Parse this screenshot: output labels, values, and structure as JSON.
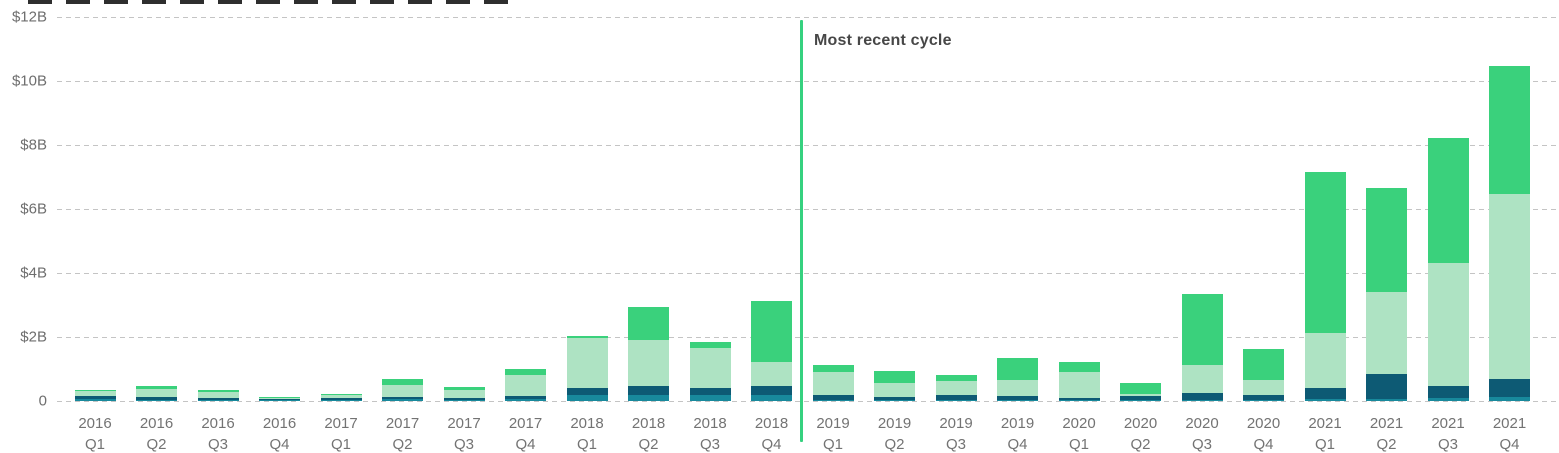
{
  "annotation": {
    "label": "Most recent cycle"
  },
  "y_axis": {
    "tick_labels": [
      "$12B",
      "$10B",
      "$8B",
      "$6B",
      "$4B",
      "$2B",
      "0"
    ]
  },
  "colors": {
    "divider": "#35d17f",
    "grid": "#c4c4c4",
    "axis_text": "#6e6e6e",
    "annotation_text": "#474747",
    "background": "#ffffff",
    "teal": "#18899c",
    "navy": "#0d5a74",
    "light_green": "#aee3c3",
    "green": "#3ad17c"
  },
  "chart_data": {
    "type": "bar",
    "stacked": true,
    "unit": "USD billions",
    "ylim": [
      0,
      12
    ],
    "ytick_labels": [
      "$12B",
      "$10B",
      "$8B",
      "$6B",
      "$4B",
      "$2B",
      "0"
    ],
    "grid": "dashed horizontal",
    "annotation": "Most recent cycle",
    "divider_after_index": 11,
    "x": {
      "years": [
        "2016",
        "2016",
        "2016",
        "2016",
        "2017",
        "2017",
        "2017",
        "2017",
        "2018",
        "2018",
        "2018",
        "2018",
        "2019",
        "2019",
        "2019",
        "2019",
        "2020",
        "2020",
        "2020",
        "2020",
        "2021",
        "2021",
        "2021",
        "2021"
      ],
      "quarters": [
        "Q1",
        "Q2",
        "Q3",
        "Q4",
        "Q1",
        "Q2",
        "Q3",
        "Q4",
        "Q1",
        "Q2",
        "Q3",
        "Q4",
        "Q1",
        "Q2",
        "Q3",
        "Q4",
        "Q1",
        "Q2",
        "Q3",
        "Q4",
        "Q1",
        "Q2",
        "Q3",
        "Q4"
      ]
    },
    "series": [
      {
        "name": "teal",
        "color": "#18899c",
        "values": [
          0.05,
          0.04,
          0.04,
          0.02,
          0.03,
          0.05,
          0.04,
          0.06,
          0.19,
          0.19,
          0.19,
          0.19,
          0.03,
          0.02,
          0.03,
          0.03,
          0.02,
          0.02,
          0.03,
          0.03,
          0.07,
          0.07,
          0.09,
          0.13
        ]
      },
      {
        "name": "navy",
        "color": "#0d5a74",
        "values": [
          0.1,
          0.08,
          0.07,
          0.04,
          0.05,
          0.08,
          0.07,
          0.1,
          0.22,
          0.28,
          0.22,
          0.28,
          0.16,
          0.12,
          0.15,
          0.12,
          0.08,
          0.15,
          0.22,
          0.16,
          0.34,
          0.78,
          0.38,
          0.56
        ]
      },
      {
        "name": "light-green",
        "color": "#aee3c3",
        "values": [
          0.16,
          0.27,
          0.17,
          0.04,
          0.1,
          0.36,
          0.23,
          0.64,
          1.56,
          1.44,
          1.25,
          0.75,
          0.72,
          0.42,
          0.44,
          0.5,
          0.81,
          0.05,
          0.87,
          0.47,
          1.72,
          2.56,
          3.84,
          5.78
        ]
      },
      {
        "name": "green",
        "color": "#3ad17c",
        "values": [
          0.05,
          0.09,
          0.06,
          0.02,
          0.04,
          0.2,
          0.1,
          0.2,
          0.06,
          1.03,
          0.19,
          1.9,
          0.22,
          0.38,
          0.19,
          0.69,
          0.31,
          0.34,
          2.22,
          0.97,
          5.03,
          3.25,
          3.91,
          4.0
        ]
      }
    ]
  }
}
